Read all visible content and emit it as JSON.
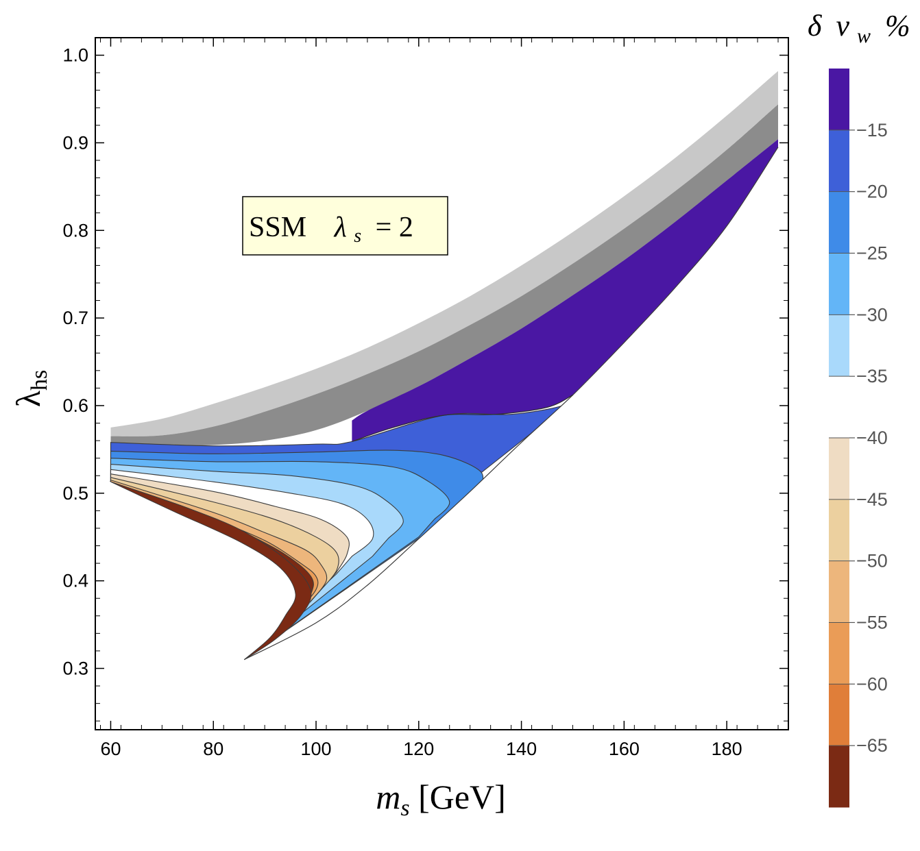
{
  "chart_data": {
    "type": "contour",
    "title": "",
    "xlabel": "m_s [GeV]",
    "ylabel": "λ_hs",
    "xlim": [
      57,
      192
    ],
    "ylim": [
      0.23,
      1.02
    ],
    "xticks": [
      60,
      80,
      100,
      120,
      140,
      160,
      180
    ],
    "yticks": [
      0.3,
      0.4,
      0.5,
      0.6,
      0.7,
      0.8,
      0.9,
      1.0
    ],
    "xtick_labels": [
      "60",
      "80",
      "100",
      "120",
      "140",
      "160",
      "180"
    ],
    "ytick_labels": [
      "0.3",
      "0.4",
      "0.5",
      "0.6",
      "0.7",
      "0.8",
      "0.9",
      "1.0"
    ],
    "annotation": {
      "model": "SSM",
      "param_symbol": "λ",
      "param_sub": "s",
      "param_rest": "= 2"
    },
    "colorbar": {
      "title": "δ v_w %",
      "title_parts": {
        "delta": "δ",
        "v": "v",
        "sub": "w",
        "pct": "%"
      },
      "levels": [
        -15,
        -20,
        -25,
        -30,
        -35,
        -40,
        -45,
        -50,
        -55,
        -60,
        -65
      ],
      "level_labels": [
        "−15",
        "−20",
        "−25",
        "−30",
        "−35",
        "−40",
        "−45",
        "−50",
        "−55",
        "−60",
        "−65"
      ],
      "colors": [
        "#4a17a3",
        "#3e60d8",
        "#3f8be8",
        "#63b5f7",
        "#a9d9fb",
        "#ffffff",
        "#efdcc3",
        "#ecd09f",
        "#edb67c",
        "#ea9c57",
        "#e07e39",
        "#7b2a14"
      ]
    },
    "excluded_band_colors": {
      "light": "#c8c8c8",
      "dark": "#8c8c8c"
    },
    "bands": {
      "x": [
        60,
        70,
        80,
        90,
        100,
        110,
        120,
        130,
        140,
        150,
        160,
        170,
        180,
        190
      ],
      "light_gray_upper": [
        0.575,
        0.585,
        0.602,
        0.621,
        0.642,
        0.666,
        0.694,
        0.725,
        0.76,
        0.798,
        0.839,
        0.883,
        0.931,
        0.982
      ],
      "dark_gray_upper": [
        0.565,
        0.566,
        0.576,
        0.593,
        0.613,
        0.636,
        0.662,
        0.692,
        0.725,
        0.762,
        0.802,
        0.845,
        0.892,
        0.944
      ],
      "dark_gray_lower": [
        0.558,
        0.555,
        0.555,
        0.56,
        0.572,
        0.594,
        0.622,
        0.654,
        0.688,
        0.726,
        0.766,
        0.81,
        0.857,
        0.904
      ]
    },
    "region": {
      "lower_edge": [
        [
          86,
          0.31
        ],
        [
          100,
          0.352
        ],
        [
          110,
          0.395
        ],
        [
          120,
          0.448
        ],
        [
          130,
          0.502
        ],
        [
          140,
          0.558
        ],
        [
          150,
          0.612
        ],
        [
          160,
          0.672
        ],
        [
          170,
          0.735
        ],
        [
          180,
          0.805
        ],
        [
          190,
          0.895
        ]
      ],
      "inner_edge": [
        [
          60,
          0.515
        ],
        [
          75,
          0.483
        ],
        [
          86,
          0.45
        ],
        [
          95,
          0.415
        ],
        [
          99,
          0.385
        ],
        [
          97,
          0.36
        ],
        [
          92,
          0.33
        ],
        [
          86,
          0.31
        ]
      ]
    }
  }
}
